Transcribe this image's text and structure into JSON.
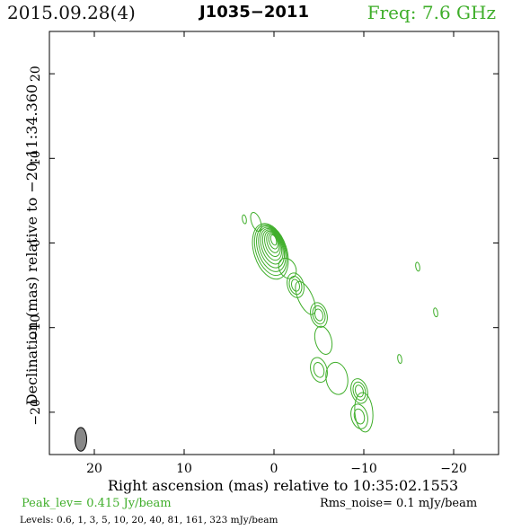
{
  "header": {
    "date": "2015.09.28(4)",
    "source": "J1035−2011",
    "frequency": "Freq: 7.6 GHz"
  },
  "footer": {
    "peak": "Peak_lev=  0.415 Jy/beam",
    "rms": "Rms_noise=  0.1 mJy/beam",
    "levels": "Levels: 0.6,   1,   3,   5,  10,  20,  40,  81, 161, 323 mJy/beam"
  },
  "colors": {
    "contour": "#3fae2a",
    "beam_fill": "#888888",
    "accent": "#3fae2a"
  },
  "chart_data": {
    "type": "contour",
    "xlabel": "Right ascension (mas) relative to 10:35:02.1553",
    "ylabel": "Declination (mas) relative to −20:11:34.360",
    "xlim": [
      25,
      -25
    ],
    "ylim": [
      -25,
      25
    ],
    "x_ticks": [
      20,
      10,
      0,
      -10,
      -20
    ],
    "x_tick_labels": [
      "20",
      "10",
      "0",
      "−10",
      "−20"
    ],
    "y_ticks": [
      20,
      10,
      0,
      -10,
      -20
    ],
    "y_tick_labels": [
      "20",
      "10",
      "0",
      "−10",
      "−20"
    ],
    "contour_levels_mjy_per_beam": [
      0.6,
      1,
      3,
      5,
      10,
      20,
      40,
      81,
      161,
      323
    ],
    "peak_jy_per_beam": 0.415,
    "rms_noise_mjy_per_beam": 0.1,
    "core": {
      "x": 0.0,
      "y": 0.5
    },
    "jet_components": [
      {
        "x": -2.4,
        "y": -5.0
      },
      {
        "x": -5.0,
        "y": -8.5
      },
      {
        "x": -5.0,
        "y": -15.0
      },
      {
        "x": -9.5,
        "y": -17.5
      },
      {
        "x": -9.5,
        "y": -20.5
      }
    ],
    "isolated_components": [
      {
        "x": 3.3,
        "y": 2.8
      },
      {
        "x": -16.0,
        "y": -2.8
      },
      {
        "x": -18.0,
        "y": -8.2
      },
      {
        "x": -14.0,
        "y": -13.7
      }
    ],
    "beam": {
      "x": 21.5,
      "y": -23.2,
      "major_mas": 2.8,
      "minor_mas": 1.3,
      "pa_deg": 0
    }
  }
}
